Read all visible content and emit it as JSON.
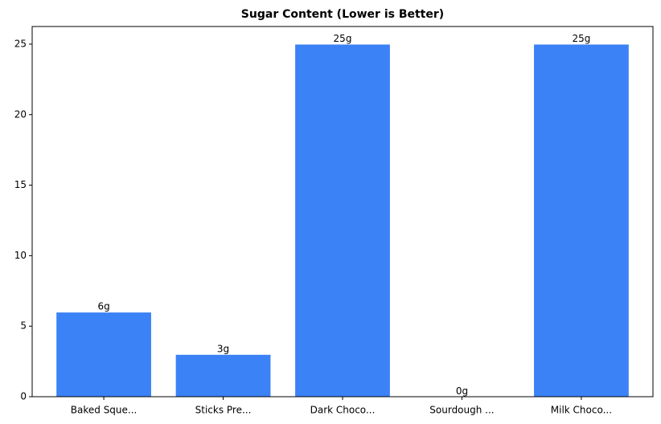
{
  "chart_data": {
    "type": "bar",
    "title": "Sugar Content (Lower is Better)",
    "categories": [
      "Baked Sque...",
      "Sticks Pre...",
      "Dark Choco...",
      "Sourdough ...",
      "Milk Choco..."
    ],
    "values": [
      6,
      3,
      25,
      0,
      25
    ],
    "value_labels": [
      "6g",
      "3g",
      "25g",
      "0g",
      "25g"
    ],
    "color": "#3b82f6",
    "ylim": [
      0,
      26.25
    ],
    "yticks": [
      0,
      5,
      10,
      15,
      20,
      25
    ]
  }
}
